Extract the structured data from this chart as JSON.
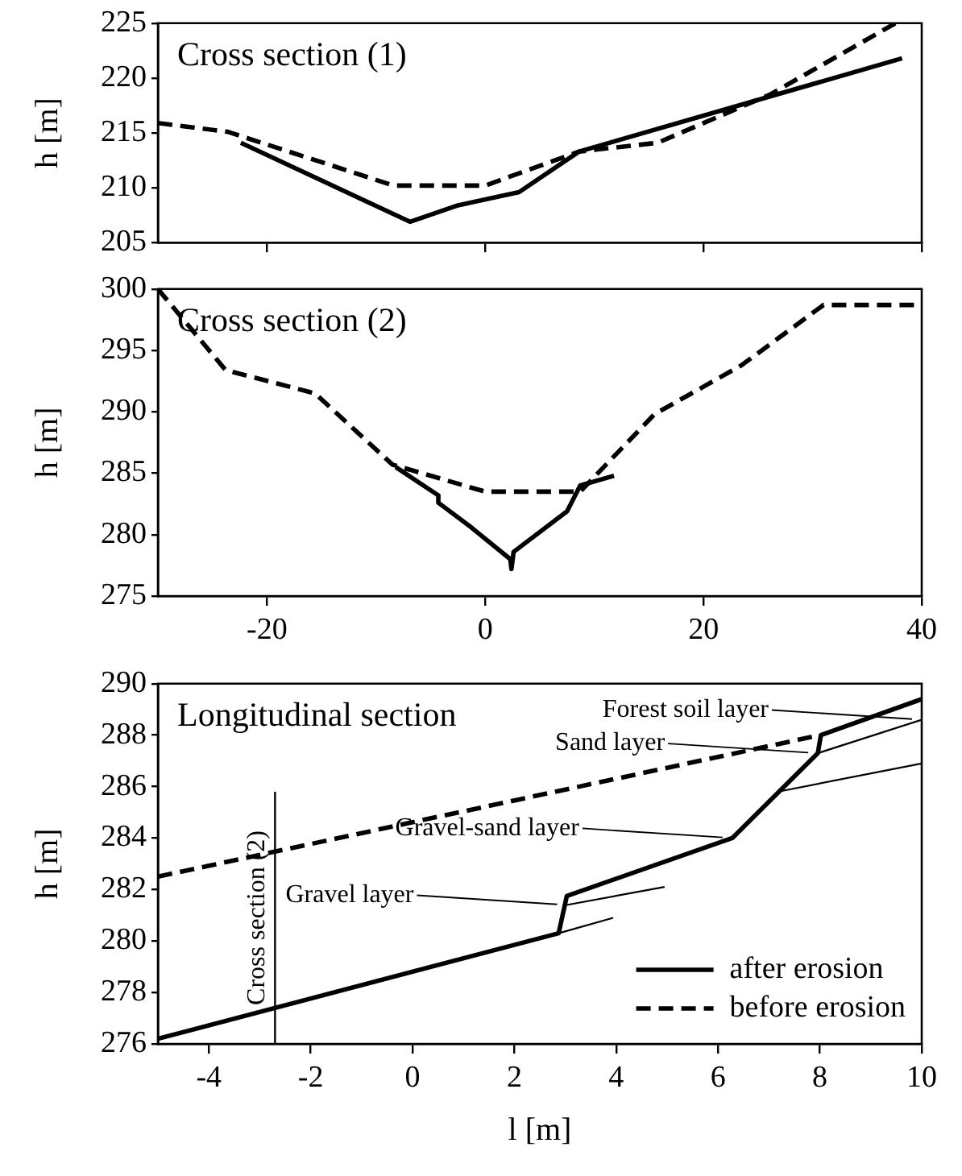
{
  "chart_data": [
    {
      "type": "line",
      "title": "Cross section (1)",
      "ylabel": "h [m]",
      "xlim": [
        -30,
        40
      ],
      "xticks": [
        {
          "value": -20,
          "label": null
        },
        {
          "value": 0,
          "label": null
        },
        {
          "value": 20,
          "label": null
        },
        {
          "value": 40,
          "label": null
        }
      ],
      "ylim": [
        205,
        225
      ],
      "yticks": [
        205,
        210,
        215,
        220,
        225
      ],
      "tick_labels": "y",
      "grid": false,
      "legend": false,
      "marker": "none",
      "series": [
        {
          "color": "#000000",
          "line_style": "solid",
          "x": [
            -22.4,
            -6.9,
            -2.5,
            3.1,
            8.6,
            38.2
          ],
          "values": [
            214.1,
            206.9,
            208.4,
            209.6,
            213.3,
            221.8
          ]
        },
        {
          "color": "#000000",
          "line_style": "dashed",
          "x": [
            -30,
            -23.6,
            -8.4,
            0,
            8.6,
            15.8,
            26.1,
            37.6
          ],
          "values": [
            215.9,
            215.1,
            210.2,
            210.2,
            213.3,
            214.1,
            218.5,
            225
          ]
        }
      ]
    },
    {
      "type": "line",
      "title": "Cross section (2)",
      "ylabel": "h [m]",
      "xlim": [
        -30,
        40
      ],
      "xticks": [
        -20,
        0,
        20,
        40
      ],
      "ylim": [
        275,
        300
      ],
      "yticks": [
        275,
        280,
        285,
        290,
        295,
        300
      ],
      "grid": false,
      "legend": false,
      "marker": "none",
      "series": [
        {
          "color": "#000000",
          "line_style": "solid",
          "x": [
            -8.2,
            -4.3,
            -4.3,
            -1.3,
            2.3,
            2.4,
            2.6,
            7.5,
            8.7,
            11.8
          ],
          "values": [
            285.5,
            283.2,
            282.6,
            280.6,
            278.0,
            277.2,
            278.6,
            281.9,
            284.0,
            284.8
          ]
        },
        {
          "color": "#000000",
          "line_style": "dashed",
          "x": [
            -30,
            -23.8,
            -15.6,
            -8.5,
            0,
            8.7,
            15.5,
            23.5,
            31,
            40
          ],
          "values": [
            300,
            293.4,
            291.5,
            285.7,
            283.5,
            283.5,
            289.8,
            293.8,
            298.7,
            298.7
          ]
        }
      ]
    },
    {
      "type": "line",
      "title": "Longitudinal section",
      "xlabel": "l [m]",
      "ylabel": "h [m]",
      "xlim": [
        -5,
        10
      ],
      "xticks": [
        -4,
        -2,
        0,
        2,
        4,
        6,
        8,
        10
      ],
      "ylim": [
        276,
        290
      ],
      "yticks": [
        276,
        278,
        280,
        282,
        284,
        286,
        288,
        290
      ],
      "grid": false,
      "legend": "bottom right",
      "marker": "none",
      "series": [
        {
          "name": "after erosion",
          "color": "#000000",
          "line_style": "solid",
          "x": [
            -5,
            2.87,
            3.03,
            6.28,
            7.96,
            8.02,
            10
          ],
          "values": [
            276.2,
            280.3,
            281.75,
            284.0,
            287.3,
            288.0,
            289.4
          ]
        },
        {
          "name": "before erosion",
          "color": "#000000",
          "line_style": "dashed",
          "x": [
            -5,
            8
          ],
          "values": [
            282.5,
            288.0
          ]
        },
        {
          "color": "#000000",
          "line_style": "solid",
          "x": [
            2.87,
            3.94
          ],
          "values": [
            280.3,
            280.9
          ]
        },
        {
          "color": "#000000",
          "line_style": "solid",
          "x": [
            3.03,
            4.95
          ],
          "values": [
            281.4,
            282.1
          ]
        },
        {
          "color": "#000000",
          "line_style": "solid",
          "x": [
            7.17,
            10
          ],
          "values": [
            285.8,
            286.9
          ]
        },
        {
          "color": "#000000",
          "line_style": "solid",
          "x": [
            7.96,
            10
          ],
          "values": [
            287.3,
            288.6
          ]
        }
      ],
      "ref_lines": [
        {
          "axis": "x",
          "value": -2.7,
          "label": "Cross section (2)"
        }
      ],
      "annotations": [
        {
          "text": "Gravel layer",
          "x": 3.03,
          "y": 281.4
        },
        {
          "text": "Gravel-sand layer",
          "x": 6.28,
          "y": 284.0
        },
        {
          "text": "Sand layer",
          "x": 7.96,
          "y": 287.3
        },
        {
          "text": "Forest soil layer",
          "x": 10,
          "y": 288.6
        }
      ]
    }
  ]
}
